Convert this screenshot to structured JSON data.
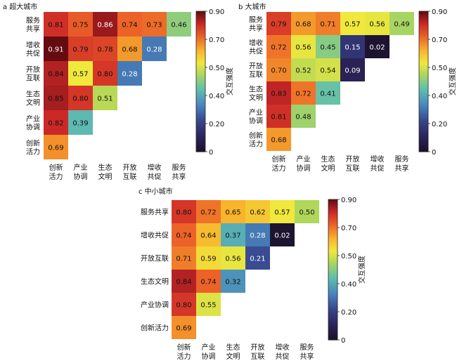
{
  "chart_data": [
    {
      "type": "heatmap",
      "title": "a 超大城市",
      "rows": [
        "服务共享",
        "增收共促",
        "开放互联",
        "生态文明",
        "产业协调",
        "创新活力"
      ],
      "columns": [
        "创新活力",
        "产业协调",
        "生态文明",
        "开放互联",
        "增收共促",
        "服务共享"
      ],
      "values": [
        [
          0.81,
          0.75,
          0.86,
          0.74,
          0.73,
          0.46
        ],
        [
          0.91,
          0.79,
          0.78,
          0.68,
          0.28
        ],
        [
          0.84,
          0.57,
          0.8,
          0.28
        ],
        [
          0.85,
          0.8,
          0.51
        ],
        [
          0.82,
          0.39
        ],
        [
          0.69
        ]
      ],
      "colorbar": {
        "label": "交互强度",
        "range": [
          0,
          0.9
        ],
        "ticks": [
          "0",
          "0.20",
          "0.40",
          "0.50",
          "0.70",
          "0.90"
        ]
      }
    },
    {
      "type": "heatmap",
      "title": "b 大城市",
      "rows": [
        "服务共享",
        "增收共促",
        "开放互联",
        "生态文明",
        "产业协调",
        "创新活力"
      ],
      "columns": [
        "创新活力",
        "产业协调",
        "生态文明",
        "开放互联",
        "增收共促",
        "服务共享"
      ],
      "values": [
        [
          0.79,
          0.68,
          0.71,
          0.57,
          0.56,
          0.49
        ],
        [
          0.72,
          0.56,
          0.45,
          0.15,
          0.02
        ],
        [
          0.7,
          0.52,
          0.54,
          0.09
        ],
        [
          0.83,
          0.72,
          0.41
        ],
        [
          0.81,
          0.48
        ],
        [
          0.68
        ]
      ],
      "colorbar": {
        "label": "交互强度",
        "range": [
          0,
          0.9
        ],
        "ticks": [
          "0",
          "0.20",
          "0.40",
          "0.50",
          "0.70",
          "0.90"
        ]
      }
    },
    {
      "type": "heatmap",
      "title": "c 中小城市",
      "rows": [
        "服务共享",
        "增收共促",
        "开放互联",
        "生态文明",
        "产业协调",
        "创新活力"
      ],
      "columns": [
        "创新活力",
        "产业协调",
        "生态文明",
        "开放互联",
        "增收共促",
        "服务共享"
      ],
      "values": [
        [
          0.8,
          0.72,
          0.65,
          0.62,
          0.57,
          0.5
        ],
        [
          0.74,
          0.64,
          0.37,
          0.28,
          0.02
        ],
        [
          0.71,
          0.59,
          0.56,
          0.21
        ],
        [
          0.84,
          0.74,
          0.32
        ],
        [
          0.8,
          0.55
        ],
        [
          0.69
        ]
      ],
      "colorbar": {
        "label": "交互强度",
        "range": [
          0,
          0.9
        ],
        "ticks": [
          "0",
          "0.20",
          "0.40",
          "0.50",
          "0.70",
          "0.90"
        ]
      }
    }
  ]
}
